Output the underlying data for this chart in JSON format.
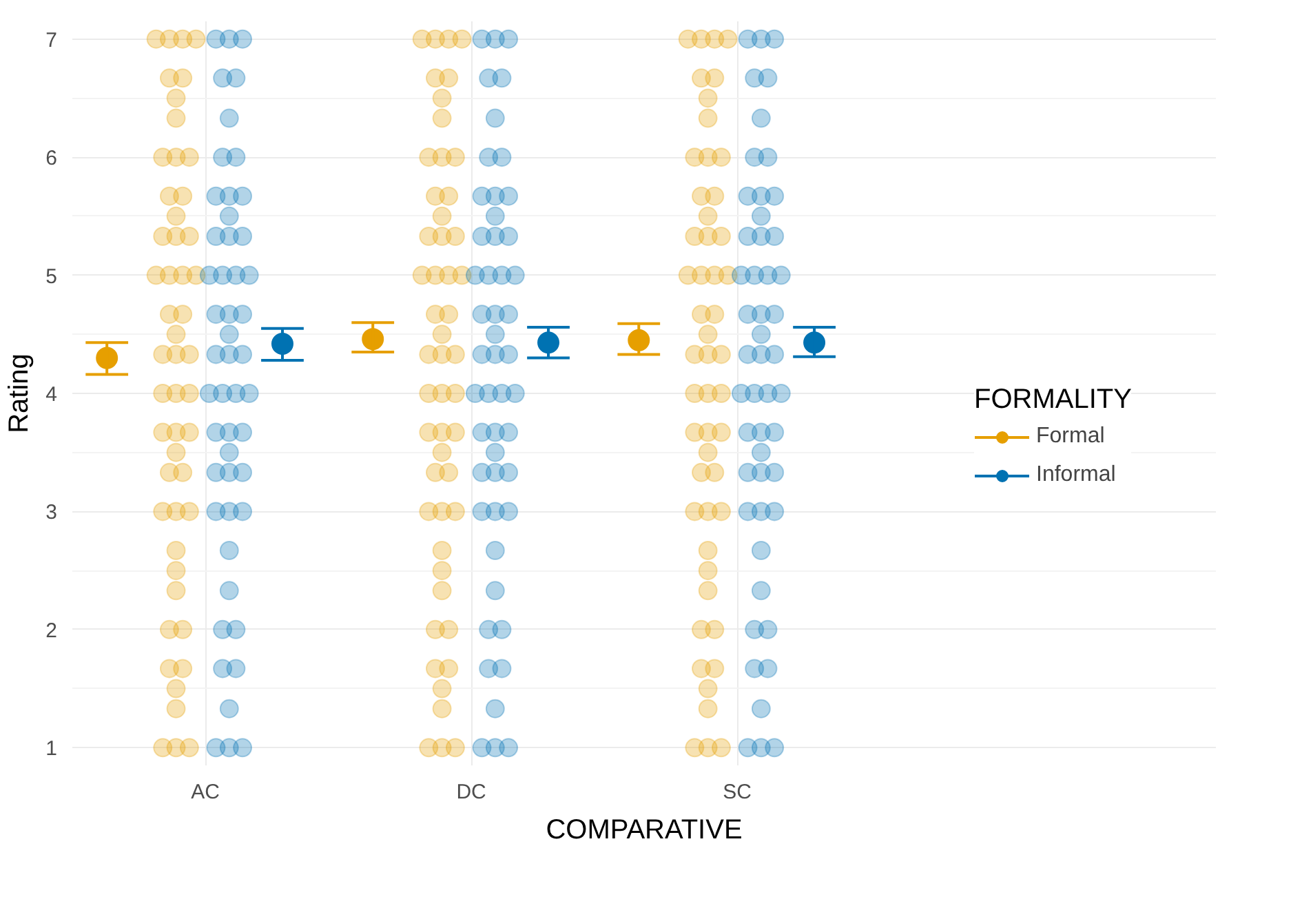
{
  "chart_data": {
    "type": "scatter",
    "xlabel": "COMPARATIVE",
    "ylabel": "Rating",
    "legend_title": "FORMALITY",
    "legend": "right",
    "grid": true,
    "marker": "circle",
    "categories": [
      "AC",
      "DC",
      "SC"
    ],
    "ylim": [
      0.85,
      7.15
    ],
    "yticks": [
      1,
      2,
      3,
      4,
      5,
      6,
      7
    ],
    "series": [
      {
        "color": "#e69f00",
        "x": [
          "AC",
          "AC",
          "AC",
          "AC",
          "AC",
          "AC",
          "AC",
          "AC",
          "AC",
          "AC",
          "AC",
          "AC",
          "AC",
          "AC",
          "AC",
          "AC",
          "AC",
          "AC",
          "AC",
          "AC",
          "AC",
          "AC",
          "AC",
          "AC",
          "AC",
          "AC",
          "AC",
          "AC",
          "AC",
          "AC",
          "AC",
          "AC",
          "AC",
          "AC",
          "AC",
          "AC",
          "AC",
          "AC",
          "AC",
          "AC",
          "AC",
          "AC",
          "AC",
          "AC",
          "AC",
          "AC",
          "AC",
          "AC",
          "AC",
          "AC",
          "AC",
          "DC",
          "DC",
          "DC",
          "DC",
          "DC",
          "DC",
          "DC",
          "DC",
          "DC",
          "DC",
          "DC",
          "DC",
          "DC",
          "DC",
          "DC",
          "DC",
          "DC",
          "DC",
          "DC",
          "DC",
          "DC",
          "DC",
          "DC",
          "DC",
          "DC",
          "DC",
          "DC",
          "DC",
          "DC",
          "DC",
          "DC",
          "DC",
          "DC",
          "DC",
          "DC",
          "DC",
          "DC",
          "DC",
          "DC",
          "DC",
          "DC",
          "DC",
          "DC",
          "DC",
          "DC",
          "DC",
          "DC",
          "DC",
          "DC",
          "DC",
          "DC",
          "SC",
          "SC",
          "SC",
          "SC",
          "SC",
          "SC",
          "SC",
          "SC",
          "SC",
          "SC",
          "SC",
          "SC",
          "SC",
          "SC",
          "SC",
          "SC",
          "SC",
          "SC",
          "SC",
          "SC",
          "SC",
          "SC",
          "SC",
          "SC",
          "SC",
          "SC",
          "SC",
          "SC",
          "SC",
          "SC",
          "SC",
          "SC",
          "SC",
          "SC",
          "SC",
          "SC",
          "SC",
          "SC",
          "SC",
          "SC",
          "SC",
          "SC",
          "SC",
          "SC",
          "SC",
          "SC",
          "SC",
          "SC",
          "SC",
          "SC",
          "SC"
        ],
        "values": [
          7,
          7,
          7,
          7,
          6.67,
          6.67,
          6.5,
          6.33,
          6,
          6,
          6,
          5.67,
          5.67,
          5.5,
          5.33,
          5.33,
          5.33,
          5,
          5,
          5,
          5,
          4.67,
          4.67,
          4.5,
          4.33,
          4.33,
          4.33,
          4,
          4,
          4,
          3.67,
          3.67,
          3.67,
          3.5,
          3.33,
          3.33,
          3,
          3,
          3,
          2.67,
          2.5,
          2.33,
          2,
          2,
          1.67,
          1.67,
          1.5,
          1.33,
          1,
          1,
          1,
          7,
          7,
          7,
          7,
          6.67,
          6.67,
          6.5,
          6.33,
          6,
          6,
          6,
          5.67,
          5.67,
          5.5,
          5.33,
          5.33,
          5.33,
          5,
          5,
          5,
          5,
          4.67,
          4.67,
          4.5,
          4.33,
          4.33,
          4.33,
          4,
          4,
          4,
          3.67,
          3.67,
          3.67,
          3.5,
          3.33,
          3.33,
          3,
          3,
          3,
          2.67,
          2.5,
          2.33,
          2,
          2,
          1.67,
          1.67,
          1.5,
          1.33,
          1,
          1,
          1,
          7,
          7,
          7,
          7,
          6.67,
          6.67,
          6.5,
          6.33,
          6,
          6,
          6,
          5.67,
          5.67,
          5.5,
          5.33,
          5.33,
          5.33,
          5,
          5,
          5,
          5,
          4.67,
          4.67,
          4.5,
          4.33,
          4.33,
          4.33,
          4,
          4,
          4,
          3.67,
          3.67,
          3.67,
          3.5,
          3.33,
          3.33,
          3,
          3,
          3,
          2.67,
          2.5,
          2.33,
          2,
          2,
          1.67,
          1.67,
          1.5,
          1.33,
          1,
          1,
          1
        ]
      },
      {
        "color": "#0072b2",
        "x": [
          "AC",
          "AC",
          "AC",
          "AC",
          "AC",
          "AC",
          "AC",
          "AC",
          "AC",
          "AC",
          "AC",
          "AC",
          "AC",
          "AC",
          "AC",
          "AC",
          "AC",
          "AC",
          "AC",
          "AC",
          "AC",
          "AC",
          "AC",
          "AC",
          "AC",
          "AC",
          "AC",
          "AC",
          "AC",
          "AC",
          "AC",
          "AC",
          "AC",
          "AC",
          "AC",
          "AC",
          "AC",
          "AC",
          "AC",
          "AC",
          "AC",
          "AC",
          "AC",
          "AC",
          "AC",
          "AC",
          "AC",
          "AC",
          "AC",
          "AC",
          "DC",
          "DC",
          "DC",
          "DC",
          "DC",
          "DC",
          "DC",
          "DC",
          "DC",
          "DC",
          "DC",
          "DC",
          "DC",
          "DC",
          "DC",
          "DC",
          "DC",
          "DC",
          "DC",
          "DC",
          "DC",
          "DC",
          "DC",
          "DC",
          "DC",
          "DC",
          "DC",
          "DC",
          "DC",
          "DC",
          "DC",
          "DC",
          "DC",
          "DC",
          "DC",
          "DC",
          "DC",
          "DC",
          "DC",
          "DC",
          "DC",
          "DC",
          "DC",
          "DC",
          "DC",
          "DC",
          "DC",
          "DC",
          "DC",
          "DC",
          "SC",
          "SC",
          "SC",
          "SC",
          "SC",
          "SC",
          "SC",
          "SC",
          "SC",
          "SC",
          "SC",
          "SC",
          "SC",
          "SC",
          "SC",
          "SC",
          "SC",
          "SC",
          "SC",
          "SC",
          "SC",
          "SC",
          "SC",
          "SC",
          "SC",
          "SC",
          "SC",
          "SC",
          "SC",
          "SC",
          "SC",
          "SC",
          "SC",
          "SC",
          "SC",
          "SC",
          "SC",
          "SC",
          "SC",
          "SC",
          "SC",
          "SC",
          "SC",
          "SC",
          "SC",
          "SC",
          "SC",
          "SC",
          "SC",
          "SC"
        ],
        "values": [
          7,
          7,
          7,
          6.67,
          6.67,
          6.33,
          6,
          6,
          5.67,
          5.67,
          5.67,
          5.5,
          5.33,
          5.33,
          5.33,
          5,
          5,
          5,
          5,
          4.67,
          4.67,
          4.67,
          4.5,
          4.33,
          4.33,
          4.33,
          4,
          4,
          4,
          4,
          3.67,
          3.67,
          3.67,
          3.5,
          3.33,
          3.33,
          3.33,
          3,
          3,
          3,
          2.67,
          2.33,
          2,
          2,
          1.67,
          1.67,
          1.33,
          1,
          1,
          1,
          7,
          7,
          7,
          6.67,
          6.67,
          6.33,
          6,
          6,
          5.67,
          5.67,
          5.67,
          5.5,
          5.33,
          5.33,
          5.33,
          5,
          5,
          5,
          5,
          4.67,
          4.67,
          4.67,
          4.5,
          4.33,
          4.33,
          4.33,
          4,
          4,
          4,
          4,
          3.67,
          3.67,
          3.67,
          3.5,
          3.33,
          3.33,
          3.33,
          3,
          3,
          3,
          2.67,
          2.33,
          2,
          2,
          1.67,
          1.67,
          1.33,
          1,
          1,
          1,
          7,
          7,
          7,
          6.67,
          6.67,
          6.33,
          6,
          6,
          5.67,
          5.67,
          5.67,
          5.5,
          5.33,
          5.33,
          5.33,
          5,
          5,
          5,
          5,
          4.67,
          4.67,
          4.67,
          4.5,
          4.33,
          4.33,
          4.33,
          4,
          4,
          4,
          4,
          3.67,
          3.67,
          3.67,
          3.5,
          3.33,
          3.33,
          3.33,
          3,
          3,
          3,
          2.67,
          2.33,
          2,
          2,
          1.67,
          1.67,
          1.33,
          1,
          1,
          1
        ]
      },
      {
        "name": "Formal",
        "color": "#e69f00",
        "x": [
          "AC",
          "DC",
          "SC"
        ],
        "values": [
          4.3,
          4.46,
          4.45
        ],
        "errors": [
          [
            4.16,
            4.43
          ],
          [
            4.35,
            4.6
          ],
          [
            4.33,
            4.59
          ]
        ]
      },
      {
        "name": "Informal",
        "color": "#0072b2",
        "x": [
          "AC",
          "DC",
          "SC"
        ],
        "values": [
          4.42,
          4.43,
          4.43
        ],
        "errors": [
          [
            4.28,
            4.55
          ],
          [
            4.3,
            4.56
          ],
          [
            4.31,
            4.56
          ]
        ]
      }
    ]
  }
}
